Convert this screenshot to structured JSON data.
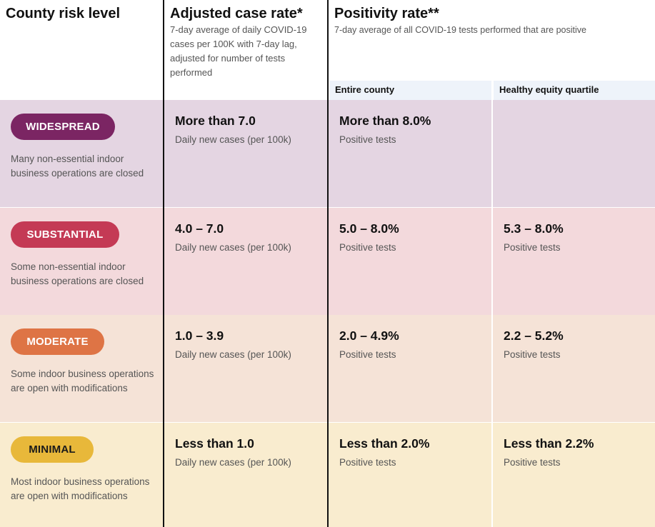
{
  "header": {
    "risk_title": "County risk level",
    "case_title": "Adjusted case rate*",
    "case_desc": "7-day average of daily COVID-19 cases per 100K with 7-day lag, adjusted for number of tests performed",
    "pos_title": "Positivity rate**",
    "pos_desc": "7-day average of all COVID-19 tests performed that are positive",
    "sub_entire": "Entire county",
    "sub_equity": "Healthy equity quartile"
  },
  "rows": [
    {
      "tier": "WIDESPREAD",
      "tier_color": "#7b2563",
      "row_bg": "#e4d5e2",
      "desc": "Many non-essential indoor business operations are closed",
      "case_value": "More than 7.0",
      "case_label": "Daily new cases (per 100k)",
      "pos_value": "More than 8.0%",
      "pos_label": "Positive tests",
      "equity_value": "",
      "equity_label": ""
    },
    {
      "tier": "SUBSTANTIAL",
      "tier_color": "#c43a55",
      "row_bg": "#f3d9dc",
      "desc": "Some non-essential indoor business operations are closed",
      "case_value": "4.0 – 7.0",
      "case_label": "Daily new cases (per 100k)",
      "pos_value": "5.0 – 8.0%",
      "pos_label": "Positive tests",
      "equity_value": "5.3 – 8.0%",
      "equity_label": "Positive tests"
    },
    {
      "tier": "MODERATE",
      "tier_color": "#de7445",
      "row_bg": "#f5e3d7",
      "desc": "Some indoor business operations are open with modifications",
      "case_value": "1.0 – 3.9",
      "case_label": "Daily new cases (per 100k)",
      "pos_value": "2.0 – 4.9%",
      "pos_label": "Positive tests",
      "equity_value": "2.2 – 5.2%",
      "equity_label": "Positive tests"
    },
    {
      "tier": "MINIMAL",
      "tier_color": "#e8b83a",
      "row_bg": "#f9eccf",
      "desc": "Most indoor business operations are open with modifications",
      "case_value": "Less than 1.0",
      "case_label": "Daily new cases (per 100k)",
      "pos_value": "Less than 2.0%",
      "pos_label": "Positive tests",
      "equity_value": "Less than 2.2%",
      "equity_label": "Positive tests"
    }
  ]
}
